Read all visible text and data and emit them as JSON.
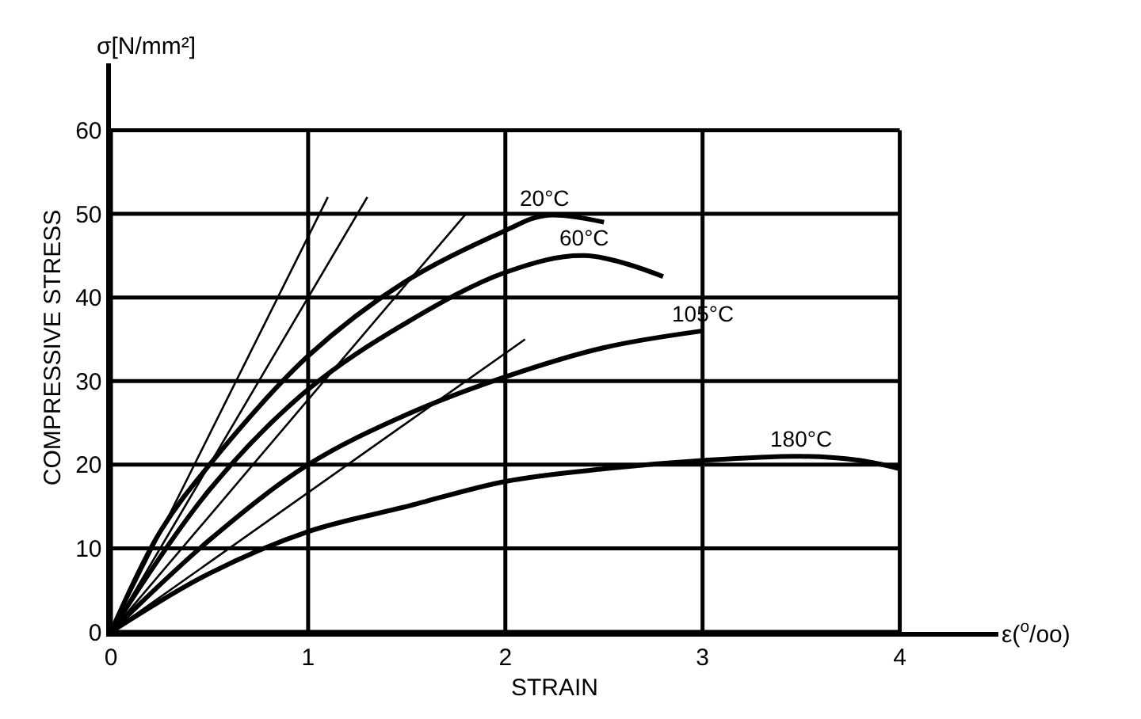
{
  "chart_data": {
    "type": "line",
    "xlabel": "STRAIN",
    "ylabel": "COMPRESSIVE STRESS",
    "annotations": [
      {
        "text": "σ[N/mm²]"
      },
      {
        "text": "ε($^{o}$/oo)"
      }
    ],
    "xlim": [
      0,
      4.5
    ],
    "ylim": [
      0,
      68
    ],
    "xticks": [
      0,
      1,
      2,
      3,
      4
    ],
    "yticks": [
      0,
      10,
      20,
      30,
      40,
      50,
      60
    ],
    "grid": true,
    "legend": false,
    "marker": "none",
    "line_style": "solid",
    "series": [
      {
        "name": "20°C",
        "color": "#000000",
        "x": [
          0,
          0.25,
          0.5,
          1,
          1.5,
          2,
          2.2,
          2.5
        ],
        "values": [
          0,
          12,
          20,
          33,
          42,
          48,
          49.8,
          49
        ]
      },
      {
        "name": "60°C",
        "color": "#000000",
        "x": [
          0,
          0.5,
          1,
          1.5,
          2,
          2.4,
          2.8
        ],
        "values": [
          0,
          17,
          29,
          37,
          43,
          45,
          42.5
        ]
      },
      {
        "name": "105°C",
        "color": "#000000",
        "x": [
          0,
          0.5,
          1,
          1.5,
          2,
          2.5,
          3
        ],
        "values": [
          0,
          11,
          20,
          26,
          30.5,
          34,
          36
        ]
      },
      {
        "name": "180°C",
        "color": "#000000",
        "x": [
          0,
          0.5,
          1,
          1.5,
          2,
          2.5,
          3,
          3.5,
          3.8,
          4
        ],
        "values": [
          0,
          7,
          12,
          15,
          18,
          19.5,
          20.5,
          21,
          20.5,
          19.5
        ]
      },
      {
        "color": "#000000",
        "x": [
          0,
          1.1
        ],
        "values": [
          0,
          52
        ]
      },
      {
        "color": "#000000",
        "x": [
          0,
          1.3
        ],
        "values": [
          0,
          52
        ]
      },
      {
        "color": "#000000",
        "x": [
          0,
          1.8
        ],
        "values": [
          0,
          50
        ]
      },
      {
        "color": "#000000",
        "x": [
          0,
          2.1
        ],
        "values": [
          0,
          35
        ]
      }
    ]
  }
}
